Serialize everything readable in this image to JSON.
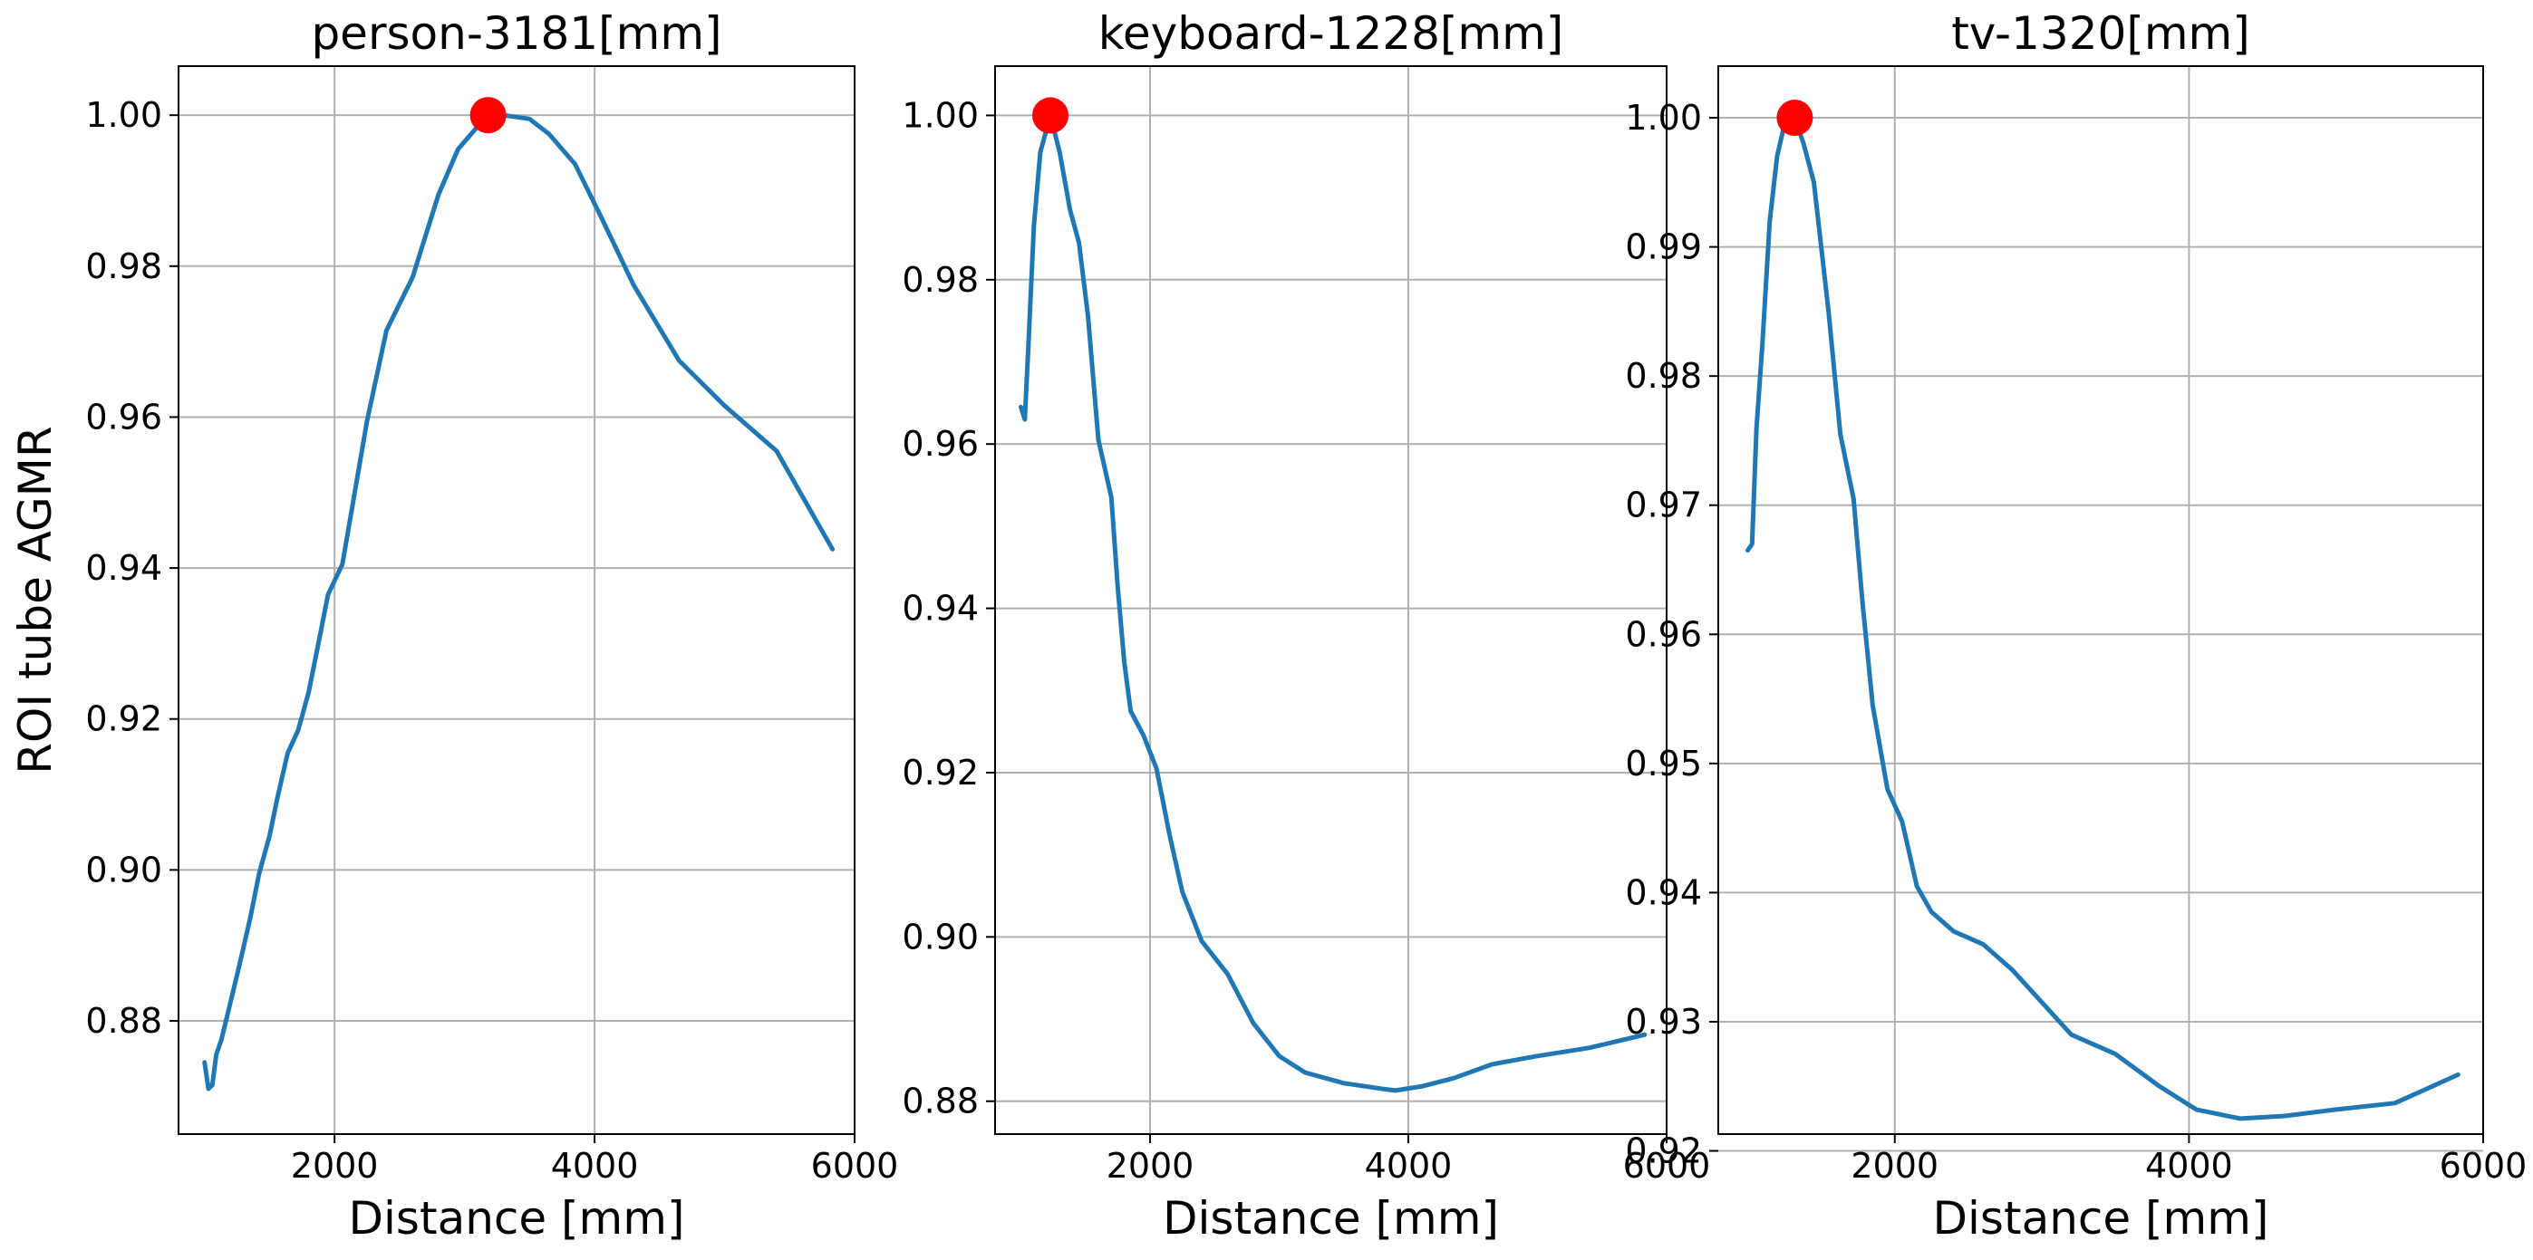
{
  "style": {
    "line_color": "#1f77b4",
    "marker_color": "#ff0000",
    "grid_color": "#b0b0b0",
    "axis_color": "#000000"
  },
  "chart_data": [
    {
      "type": "line",
      "title": "person-3181[mm]",
      "xlabel": "Distance [mm]",
      "ylabel": "ROI tube AGMR",
      "grid": true,
      "xlim": [
        800,
        6000
      ],
      "ylim": [
        0.865,
        1.0065
      ],
      "xticks": [
        2000,
        4000,
        6000
      ],
      "xtick_labels": [
        "2000",
        "4000",
        "6000"
      ],
      "yticks": [
        0.88,
        0.9,
        0.92,
        0.94,
        0.96,
        0.98,
        1.0
      ],
      "ytick_labels": [
        "0.88",
        "0.90",
        "0.92",
        "0.94",
        "0.96",
        "0.98",
        "1.00"
      ],
      "series": [
        {
          "x": [
            1000,
            1030,
            1060,
            1090,
            1130,
            1200,
            1270,
            1350,
            1420,
            1500,
            1560,
            1640,
            1720,
            1800,
            1870,
            1950,
            2060,
            2150,
            2250,
            2400,
            2600,
            2800,
            2950,
            3100,
            3181,
            3300,
            3500,
            3650,
            3850,
            4050,
            4300,
            4650,
            5000,
            5400,
            5830
          ],
          "y": [
            0.8745,
            0.871,
            0.8715,
            0.8755,
            0.8775,
            0.8825,
            0.8875,
            0.8935,
            0.8995,
            0.9045,
            0.9095,
            0.9155,
            0.9185,
            0.9235,
            0.9295,
            0.9365,
            0.9405,
            0.9495,
            0.9595,
            0.9715,
            0.9785,
            0.9895,
            0.9955,
            0.9985,
            1.0,
            1.0,
            0.9995,
            0.9975,
            0.9935,
            0.9865,
            0.9775,
            0.9675,
            0.9615,
            0.9555,
            0.9425
          ]
        }
      ],
      "max_point": {
        "x": 3181,
        "y": 1.0
      }
    },
    {
      "type": "line",
      "title": "keyboard-1228[mm]",
      "xlabel": "Distance [mm]",
      "ylabel": "",
      "grid": true,
      "xlim": [
        800,
        6000
      ],
      "ylim": [
        0.876,
        1.006
      ],
      "xticks": [
        2000,
        4000,
        6000
      ],
      "xtick_labels": [
        "2000",
        "4000",
        "6000"
      ],
      "yticks": [
        0.88,
        0.9,
        0.92,
        0.94,
        0.96,
        0.98,
        1.0
      ],
      "ytick_labels": [
        "0.88",
        "0.90",
        "0.92",
        "0.94",
        "0.96",
        "0.98",
        "1.00"
      ],
      "series": [
        {
          "x": [
            1000,
            1030,
            1060,
            1100,
            1150,
            1228,
            1300,
            1380,
            1450,
            1520,
            1600,
            1700,
            1750,
            1800,
            1850,
            1950,
            2050,
            2150,
            2250,
            2400,
            2600,
            2800,
            3000,
            3200,
            3500,
            3800,
            3900,
            4100,
            4350,
            4650,
            5000,
            5400,
            5830
          ],
          "y": [
            0.9645,
            0.963,
            0.9725,
            0.9865,
            0.9955,
            1.0,
            0.9955,
            0.9885,
            0.9845,
            0.9755,
            0.9605,
            0.9535,
            0.9425,
            0.9335,
            0.9275,
            0.9245,
            0.9205,
            0.9125,
            0.9055,
            0.8995,
            0.8955,
            0.8895,
            0.8855,
            0.8835,
            0.8822,
            0.8815,
            0.8813,
            0.8818,
            0.8828,
            0.8845,
            0.8855,
            0.8865,
            0.8881
          ]
        }
      ],
      "max_point": {
        "x": 1228,
        "y": 1.0
      }
    },
    {
      "type": "line",
      "title": "tv-1320[mm]",
      "xlabel": "Distance [mm]",
      "ylabel": "",
      "grid": true,
      "xlim": [
        800,
        6000
      ],
      "ylim": [
        0.9213,
        1.004
      ],
      "xticks": [
        2000,
        4000,
        6000
      ],
      "xtick_labels": [
        "2000",
        "4000",
        "6000"
      ],
      "yticks": [
        0.92,
        0.93,
        0.94,
        0.95,
        0.96,
        0.97,
        0.98,
        0.99,
        1.0
      ],
      "ytick_labels": [
        "0.92",
        "0.93",
        "0.94",
        "0.95",
        "0.96",
        "0.97",
        "0.98",
        "0.99",
        "1.00"
      ],
      "series": [
        {
          "x": [
            1000,
            1030,
            1060,
            1100,
            1150,
            1200,
            1250,
            1320,
            1380,
            1450,
            1550,
            1630,
            1720,
            1780,
            1850,
            1950,
            2050,
            2150,
            2250,
            2400,
            2600,
            2800,
            3000,
            3200,
            3500,
            3800,
            4050,
            4350,
            4650,
            5000,
            5400,
            5830
          ],
          "y": [
            0.9665,
            0.967,
            0.976,
            0.9825,
            0.992,
            0.997,
            0.9995,
            1.0,
            0.998,
            0.995,
            0.985,
            0.9755,
            0.9705,
            0.9625,
            0.9545,
            0.948,
            0.9455,
            0.9405,
            0.9385,
            0.937,
            0.936,
            0.934,
            0.9315,
            0.929,
            0.9275,
            0.925,
            0.9232,
            0.9225,
            0.9227,
            0.9232,
            0.9237,
            0.9259
          ]
        }
      ],
      "max_point": {
        "x": 1320,
        "y": 1.0
      }
    }
  ]
}
